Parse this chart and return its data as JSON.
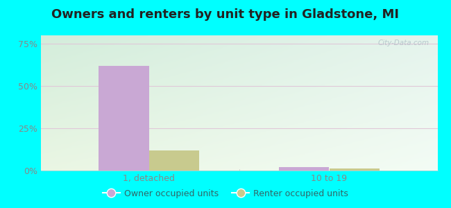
{
  "title": "Owners and renters by unit type in Gladstone, MI",
  "categories": [
    "1, detached",
    "10 to 19"
  ],
  "owner_values": [
    62,
    2.0
  ],
  "renter_values": [
    12,
    1.2
  ],
  "owner_color": "#c9a8d4",
  "renter_color": "#c8ca8e",
  "yticks": [
    0,
    25,
    50,
    75
  ],
  "ytick_labels": [
    "0%",
    "25%",
    "50%",
    "75%"
  ],
  "ylim": [
    0,
    80
  ],
  "bar_width": 0.28,
  "outer_bg": "#00ffff",
  "chart_bg_topleft": "#d0ecd8",
  "chart_bg_topright": "#e8f5f0",
  "chart_bg_bottomleft": "#e8f5e0",
  "chart_bg_bottomright": "#f5fdf8",
  "grid_color": "#e8d8e8",
  "legend_labels": [
    "Owner occupied units",
    "Renter occupied units"
  ],
  "watermark": "City-Data.com",
  "title_fontsize": 13,
  "axis_label_fontsize": 9,
  "legend_fontsize": 9,
  "tick_color": "#888888"
}
